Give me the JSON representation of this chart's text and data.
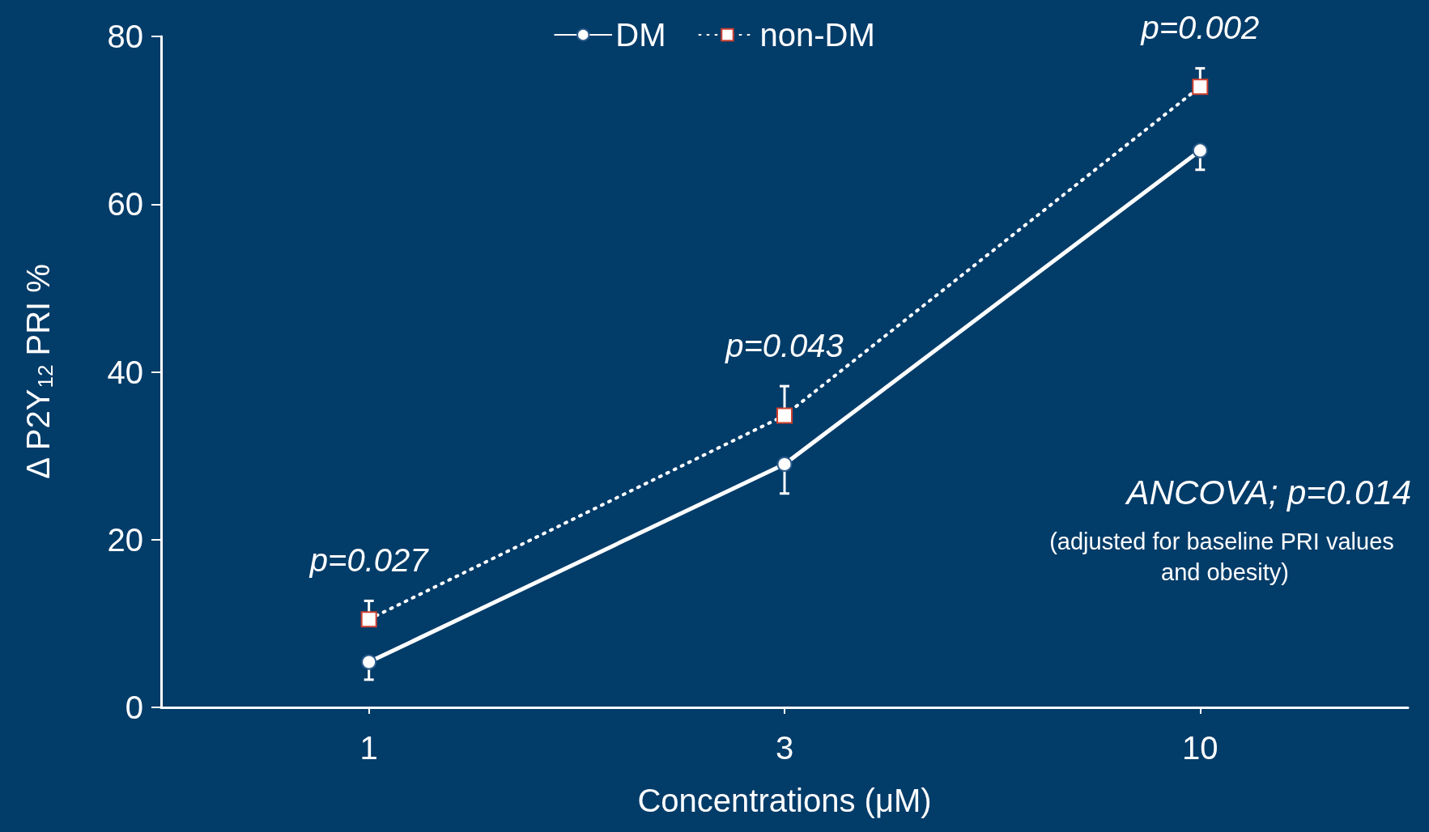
{
  "chart_data": {
    "type": "line",
    "xlabel": "Concentrations (μM)",
    "ylabel": "Δ P2Y$_{12}$ PRI %",
    "categories": [
      "1",
      "3",
      "10"
    ],
    "series": [
      {
        "name": "DM",
        "color": "#ffffff",
        "values": [
          5.4,
          29.0,
          66.4
        ],
        "errors": [
          [
            3.3,
            5.4
          ],
          [
            25.5,
            29.0
          ],
          [
            64.1,
            66.4
          ]
        ],
        "marker": "circle",
        "line_style": "solid"
      },
      {
        "name": "non-DM",
        "color": "#ffffff",
        "values": [
          10.5,
          34.8,
          74.0
        ],
        "errors": [
          [
            10.5,
            12.7
          ],
          [
            34.8,
            38.3
          ],
          [
            74.0,
            76.2
          ]
        ],
        "marker": "square",
        "line_style": "dotted"
      }
    ],
    "ylim": [
      0,
      80
    ],
    "yticks": [
      0,
      20,
      40,
      60,
      80
    ],
    "grid": false,
    "legend": "top",
    "annotations": [
      {
        "text": "p=0.027",
        "x": "1",
        "y": 12.7
      },
      {
        "text": "p=0.043",
        "x": "3",
        "y": 38.3
      },
      {
        "text": "p=0.002",
        "x": "10",
        "y": 76.2
      },
      "ANCOVA; p=0.014",
      "(adjusted for baseline PRI values and obesity)"
    ]
  }
}
